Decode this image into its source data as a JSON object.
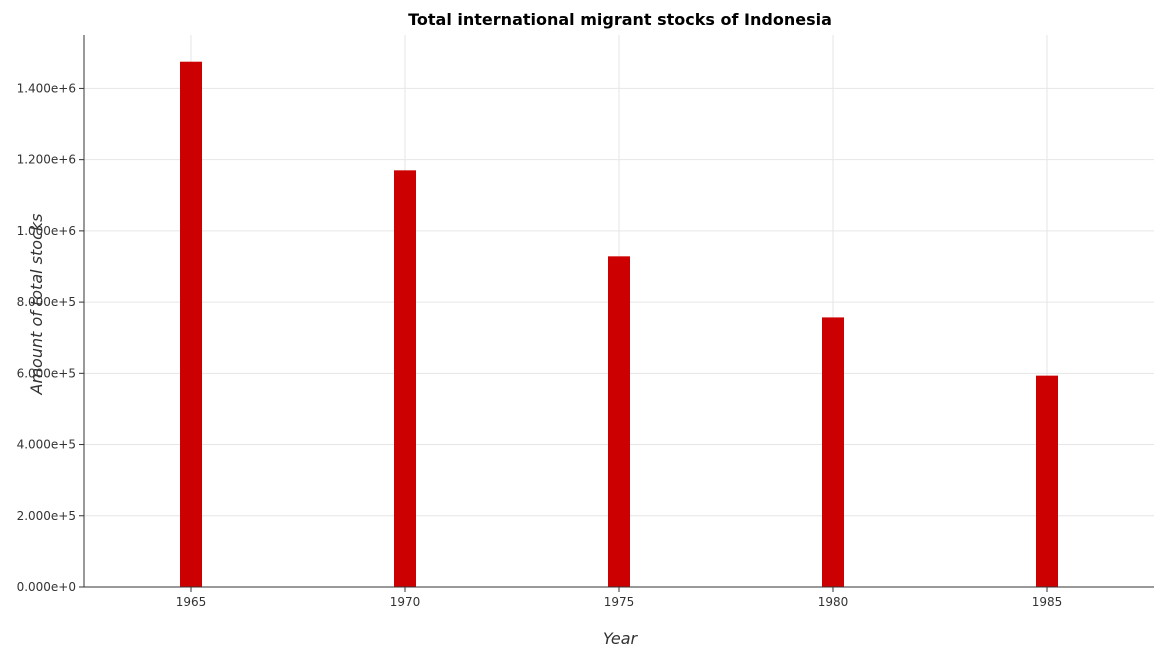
{
  "chart_data": {
    "type": "bar",
    "title": "Total international migrant stocks of Indonesia",
    "xlabel": "Year",
    "ylabel": "Amount of total stocks",
    "categories": [
      "1965",
      "1970",
      "1975",
      "1980",
      "1985"
    ],
    "values": [
      1475000,
      1170000,
      928500,
      757000,
      593500
    ],
    "ylim": [
      0,
      1550000
    ],
    "yticks": [
      0,
      200000,
      400000,
      600000,
      800000,
      1000000,
      1200000,
      1400000
    ],
    "ytick_labels": [
      "0.000e+0",
      "2.000e+5",
      "4.000e+5",
      "6.000e+5",
      "8.000e+5",
      "1.000e+6",
      "1.200e+6",
      "1.400e+6"
    ],
    "grid": true,
    "bar_color": "#cc0000"
  }
}
